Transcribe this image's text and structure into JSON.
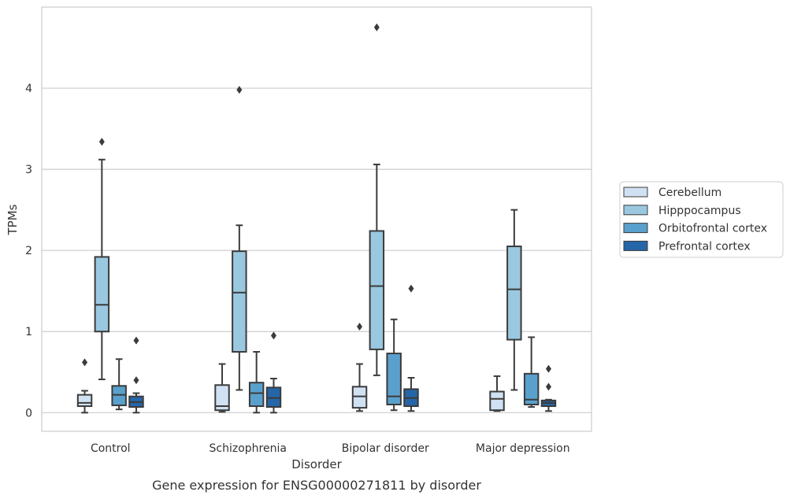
{
  "chart_data": {
    "type": "box",
    "title": "",
    "caption": "Gene expression for ENSG00000271811 by disorder",
    "xlabel": "Disorder",
    "ylabel": "TPMs",
    "ylim": [
      -0.23,
      5.0
    ],
    "yticks": [
      0,
      1,
      2,
      3,
      4
    ],
    "grid": true,
    "legend_position": "right",
    "categories": [
      "Control",
      "Schizophrenia",
      "Bipolar disorder",
      "Major depression"
    ],
    "series": [
      {
        "name": "Cerebellum",
        "color": "#cfe1f2",
        "boxes": [
          {
            "whislo": 0.0,
            "q1": 0.08,
            "med": 0.12,
            "q3": 0.22,
            "whishi": 0.27,
            "fliers": [
              0.62
            ]
          },
          {
            "whislo": 0.01,
            "q1": 0.03,
            "med": 0.08,
            "q3": 0.34,
            "whishi": 0.6,
            "fliers": []
          },
          {
            "whislo": 0.02,
            "q1": 0.06,
            "med": 0.2,
            "q3": 0.32,
            "whishi": 0.6,
            "fliers": [
              1.06
            ]
          },
          {
            "whislo": 0.02,
            "q1": 0.03,
            "med": 0.17,
            "q3": 0.26,
            "whishi": 0.45,
            "fliers": []
          }
        ]
      },
      {
        "name": "Hipppocampus",
        "color": "#9ac8e0",
        "boxes": [
          {
            "whislo": 0.41,
            "q1": 1.0,
            "med": 1.33,
            "q3": 1.92,
            "whishi": 3.12,
            "fliers": [
              3.34
            ]
          },
          {
            "whislo": 0.28,
            "q1": 0.75,
            "med": 1.48,
            "q3": 1.99,
            "whishi": 2.31,
            "fliers": [
              3.98
            ]
          },
          {
            "whislo": 0.46,
            "q1": 0.78,
            "med": 1.56,
            "q3": 2.24,
            "whishi": 3.06,
            "fliers": [
              4.75
            ]
          },
          {
            "whislo": 0.28,
            "q1": 0.9,
            "med": 1.52,
            "q3": 2.05,
            "whishi": 2.5,
            "fliers": []
          }
        ]
      },
      {
        "name": "Orbitofrontal cortex",
        "color": "#5aa0cd",
        "boxes": [
          {
            "whislo": 0.04,
            "q1": 0.09,
            "med": 0.22,
            "q3": 0.33,
            "whishi": 0.66,
            "fliers": []
          },
          {
            "whislo": 0.0,
            "q1": 0.08,
            "med": 0.24,
            "q3": 0.37,
            "whishi": 0.75,
            "fliers": []
          },
          {
            "whislo": 0.03,
            "q1": 0.1,
            "med": 0.2,
            "q3": 0.73,
            "whishi": 1.15,
            "fliers": []
          },
          {
            "whislo": 0.07,
            "q1": 0.1,
            "med": 0.16,
            "q3": 0.48,
            "whishi": 0.93,
            "fliers": []
          }
        ]
      },
      {
        "name": "Prefrontal cortex",
        "color": "#2566a8",
        "boxes": [
          {
            "whislo": 0.0,
            "q1": 0.07,
            "med": 0.13,
            "q3": 0.2,
            "whishi": 0.24,
            "fliers": [
              0.4,
              0.89
            ]
          },
          {
            "whislo": 0.0,
            "q1": 0.07,
            "med": 0.18,
            "q3": 0.31,
            "whishi": 0.42,
            "fliers": [
              0.95
            ]
          },
          {
            "whislo": 0.02,
            "q1": 0.08,
            "med": 0.18,
            "q3": 0.29,
            "whishi": 0.43,
            "fliers": [
              1.53
            ]
          },
          {
            "whislo": 0.02,
            "q1": 0.08,
            "med": 0.12,
            "q3": 0.15,
            "whishi": 0.16,
            "fliers": [
              0.32,
              0.54
            ]
          }
        ]
      }
    ]
  }
}
